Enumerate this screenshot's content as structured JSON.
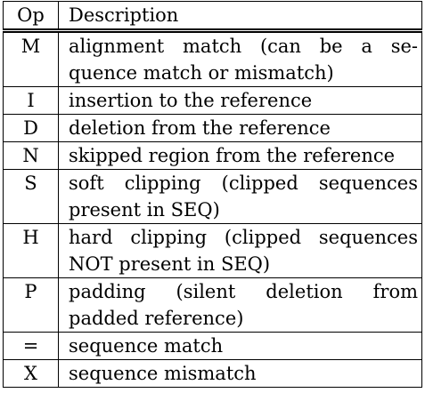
{
  "table": {
    "header": {
      "op": "Op",
      "description": "Description"
    },
    "rows": [
      {
        "op": "M",
        "line1": "alignment match (can be a se-",
        "line2": "quence match or mismatch)"
      },
      {
        "op": "I",
        "line1": "insertion to the reference",
        "line2": ""
      },
      {
        "op": "D",
        "line1": "deletion from the reference",
        "line2": ""
      },
      {
        "op": "N",
        "line1": "skipped region from the reference",
        "line2": ""
      },
      {
        "op": "S",
        "line1": "soft clipping (clipped sequences",
        "line2": "present in SEQ)"
      },
      {
        "op": "H",
        "line1": "hard clipping (clipped sequences",
        "line2": "NOT present in SEQ)"
      },
      {
        "op": "P",
        "line1": "padding (silent deletion from",
        "line2": "padded reference)"
      },
      {
        "op": "=",
        "line1": "sequence match",
        "line2": ""
      },
      {
        "op": "X",
        "line1": "sequence mismatch",
        "line2": ""
      }
    ]
  }
}
